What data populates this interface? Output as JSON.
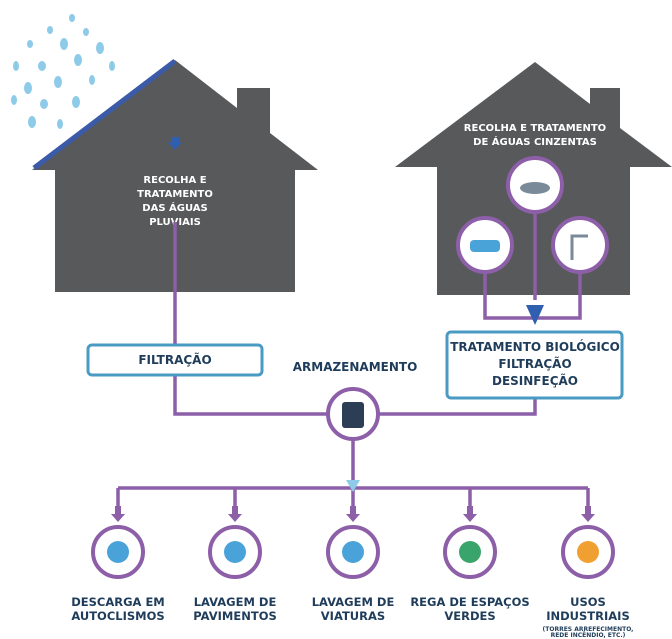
{
  "rain_house": {
    "lines": [
      "RECOLHA E",
      "TRATAMENTO",
      "DAS ÁGUAS",
      "PLUVIAIS"
    ]
  },
  "grey_house": {
    "lines": [
      "RECOLHA E TRATAMENTO",
      "DE ÁGUAS CINZENTAS"
    ]
  },
  "filtration": "FILTRAÇÃO",
  "treatment": [
    "TRATAMENTO BIOLÓGICO",
    "FILTRAÇÃO",
    "DESINFEÇÃO"
  ],
  "storage": "ARMAZENAMENTO",
  "uses": [
    {
      "lines": [
        "DESCARGA EM",
        "AUTOCLISMOS"
      ]
    },
    {
      "lines": [
        "LAVAGEM DE",
        "PAVIMENTOS"
      ]
    },
    {
      "lines": [
        "LAVAGEM DE",
        "VIATURAS"
      ]
    },
    {
      "lines": [
        "REGA DE ESPAÇOS",
        "VERDES"
      ]
    },
    {
      "lines": [
        "USOS",
        "INDUSTRIAIS"
      ],
      "note": [
        "(TORRES ARREFECIMENTO,",
        "REDE INCÊNDIO, ETC.)"
      ]
    }
  ]
}
